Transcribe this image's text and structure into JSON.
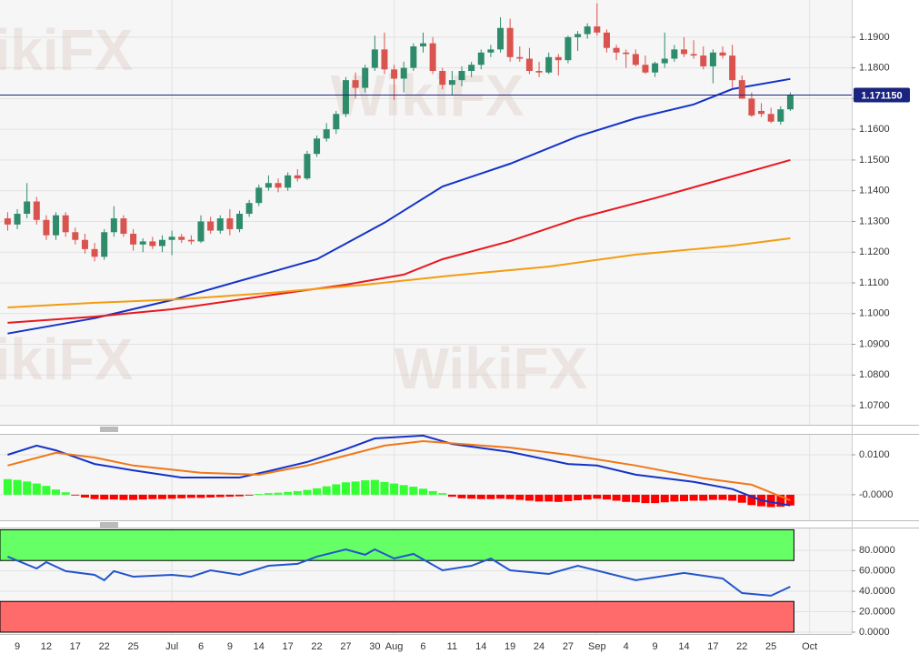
{
  "chart_data": [
    {
      "type": "candlestick",
      "categories": [
        null,
        "9",
        null,
        null,
        "12",
        null,
        null,
        "17",
        null,
        null,
        "22",
        null,
        null,
        "25",
        null,
        null,
        null,
        "Jul",
        null,
        null,
        "6",
        null,
        null,
        "9",
        null,
        null,
        "14",
        null,
        null,
        "17",
        null,
        null,
        "22",
        null,
        null,
        "27",
        null,
        null,
        "30",
        null,
        "Aug",
        null,
        null,
        "6",
        null,
        null,
        "11",
        null,
        null,
        "14",
        null,
        null,
        "19",
        null,
        null,
        "24",
        null,
        null,
        "27",
        null,
        null,
        "Sep",
        null,
        null,
        "4",
        null,
        null,
        "9",
        null,
        null,
        "14",
        null,
        null,
        "17",
        null,
        null,
        "22",
        null,
        null,
        "25",
        null,
        null,
        null,
        "Oct"
      ],
      "open": [
        1.131,
        1.129,
        1.1325,
        1.1365,
        1.1305,
        1.1255,
        1.132,
        1.1265,
        1.124,
        1.121,
        1.1185,
        1.1265,
        1.131,
        1.126,
        1.1225,
        1.1235,
        1.122,
        1.124,
        1.125,
        1.124,
        1.1235,
        1.13,
        1.127,
        1.131,
        1.1275,
        1.1325,
        1.136,
        1.141,
        1.1425,
        1.141,
        1.145,
        1.144,
        1.152,
        1.157,
        1.16,
        1.165,
        1.176,
        1.1735,
        1.18,
        1.186,
        1.1795,
        1.1765,
        1.18,
        1.187,
        1.188,
        1.179,
        1.1745,
        1.176,
        1.179,
        1.181,
        1.185,
        1.186,
        1.193,
        1.1835,
        1.183,
        1.179,
        1.1785,
        1.1835,
        1.1825,
        1.19,
        1.191,
        1.1935,
        1.1915,
        1.1865,
        1.185,
        1.1845,
        1.181,
        1.1785,
        1.1815,
        1.183,
        1.186,
        1.1845,
        1.184,
        1.1805,
        1.185,
        1.184,
        1.176,
        1.17,
        1.166,
        1.165,
        1.1625,
        1.1665,
        null,
        null
      ],
      "high": [
        1.133,
        1.134,
        1.1425,
        1.138,
        1.132,
        1.133,
        1.133,
        1.128,
        1.126,
        1.123,
        1.1275,
        1.135,
        1.132,
        1.1275,
        1.1245,
        1.125,
        1.1255,
        1.127,
        1.126,
        1.1255,
        1.132,
        1.1315,
        1.132,
        1.134,
        1.1335,
        1.137,
        1.142,
        1.145,
        1.144,
        1.146,
        1.147,
        1.153,
        1.158,
        1.162,
        1.166,
        1.177,
        1.1785,
        1.181,
        1.1905,
        1.1915,
        1.181,
        1.182,
        1.188,
        1.1915,
        1.19,
        1.18,
        1.179,
        1.1805,
        1.182,
        1.186,
        1.1875,
        1.1965,
        1.196,
        1.187,
        1.1865,
        1.182,
        1.185,
        1.1845,
        1.1905,
        1.192,
        1.1945,
        1.201,
        1.1925,
        1.1875,
        1.186,
        1.186,
        1.184,
        1.182,
        1.1915,
        1.1875,
        1.19,
        1.189,
        1.187,
        1.186,
        1.187,
        1.1875,
        1.1775,
        1.172,
        1.1685,
        1.167,
        1.1675,
        1.172,
        null,
        null
      ],
      "low": [
        1.127,
        1.1275,
        1.131,
        1.129,
        1.124,
        1.124,
        1.125,
        1.1225,
        1.1195,
        1.117,
        1.1175,
        1.125,
        1.125,
        1.1205,
        1.12,
        1.121,
        1.12,
        1.119,
        1.123,
        1.1225,
        1.123,
        1.126,
        1.126,
        1.1255,
        1.1265,
        1.1315,
        1.135,
        1.14,
        1.1395,
        1.14,
        1.143,
        1.1435,
        1.151,
        1.156,
        1.1585,
        1.164,
        1.17,
        1.172,
        1.179,
        1.178,
        1.1695,
        1.172,
        1.179,
        1.185,
        1.178,
        1.173,
        1.171,
        1.174,
        1.177,
        1.1795,
        1.1835,
        1.185,
        1.182,
        1.182,
        1.178,
        1.177,
        1.178,
        1.1775,
        1.1815,
        1.1855,
        1.1895,
        1.1905,
        1.185,
        1.1825,
        1.18,
        1.1805,
        1.178,
        1.177,
        1.18,
        1.182,
        1.1835,
        1.183,
        1.1795,
        1.175,
        1.183,
        1.1735,
        1.17,
        1.164,
        1.164,
        1.162,
        1.1615,
        1.166,
        null,
        null
      ],
      "close": [
        1.129,
        1.1325,
        1.1365,
        1.1305,
        1.1255,
        1.132,
        1.1265,
        1.124,
        1.121,
        1.1185,
        1.1265,
        1.131,
        1.126,
        1.1225,
        1.1235,
        1.122,
        1.124,
        1.125,
        1.124,
        1.1235,
        1.13,
        1.127,
        1.131,
        1.1275,
        1.1325,
        1.136,
        1.141,
        1.1425,
        1.141,
        1.145,
        1.144,
        1.152,
        1.157,
        1.16,
        1.165,
        1.176,
        1.1735,
        1.18,
        1.186,
        1.1795,
        1.1765,
        1.18,
        1.187,
        1.188,
        1.179,
        1.1745,
        1.176,
        1.179,
        1.181,
        1.185,
        1.186,
        1.193,
        1.1835,
        1.183,
        1.179,
        1.1785,
        1.1835,
        1.1825,
        1.19,
        1.191,
        1.1935,
        1.1915,
        1.1865,
        1.185,
        1.1845,
        1.181,
        1.1785,
        1.1815,
        1.183,
        1.186,
        1.1845,
        1.184,
        1.1805,
        1.185,
        1.184,
        1.176,
        1.17,
        1.1645,
        1.165,
        1.1625,
        1.1665,
        1.1712,
        null,
        null
      ],
      "up_color": "#2e8b6b",
      "down_color": "#d9534f",
      "lines": [
        {
          "color": "#1432c8",
          "x": [
            0,
            9,
            17,
            27,
            32,
            39,
            45,
            52,
            59,
            65,
            71,
            75,
            81
          ],
          "values": [
            1.0935,
            1.0985,
            1.1044,
            1.1133,
            1.1177,
            1.1296,
            1.1414,
            1.1488,
            1.1577,
            1.1636,
            1.1681,
            1.1731,
            1.1764
          ]
        },
        {
          "color": "#e8181f",
          "x": [
            0,
            9,
            17,
            27,
            35,
            41,
            45,
            52,
            59,
            67,
            73,
            81
          ],
          "values": [
            1.097,
            1.099,
            1.1014,
            1.1059,
            1.1094,
            1.1127,
            1.1177,
            1.1236,
            1.131,
            1.1376,
            1.1429,
            1.15
          ]
        },
        {
          "color": "#f39c12",
          "x": [
            0,
            9,
            18,
            27,
            37,
            46,
            56,
            65,
            75,
            81
          ],
          "values": [
            1.102,
            1.1035,
            1.1047,
            1.1067,
            1.1094,
            1.1124,
            1.1153,
            1.1192,
            1.1221,
            1.1245
          ]
        }
      ],
      "price_line": {
        "value": 1.17115,
        "label": "1.171150",
        "color": "#1a237e"
      },
      "ylim": [
        1.0638,
        1.2021
      ],
      "yticks": [
        {
          "value": 1.19,
          "label": "1.1900"
        },
        {
          "value": 1.18,
          "label": "1.1800"
        },
        {
          "value": 1.17,
          "label": "1.1700"
        },
        {
          "value": 1.16,
          "label": "1.1600"
        },
        {
          "value": 1.15,
          "label": "1.1500"
        },
        {
          "value": 1.14,
          "label": "1.1400"
        },
        {
          "value": 1.13,
          "label": "1.1300"
        },
        {
          "value": 1.12,
          "label": "1.1200"
        },
        {
          "value": 1.11,
          "label": "1.1100"
        },
        {
          "value": 1.1,
          "label": "1.1000"
        },
        {
          "value": 1.09,
          "label": "1.0900"
        },
        {
          "value": 1.08,
          "label": "1.0800"
        },
        {
          "value": 1.07,
          "label": "1.0700"
        }
      ],
      "grid": true,
      "watermark": "WikiFX"
    },
    {
      "type": "macd",
      "histogram": {
        "up_color": "#33ff33",
        "down_color": "#ff0000",
        "values": [
          0.0039,
          0.0037,
          0.0033,
          0.0028,
          0.0022,
          0.0013,
          0.0006,
          -0.0002,
          -0.0007,
          -0.0011,
          -0.0012,
          -0.0012,
          -0.0013,
          -0.0013,
          -0.0012,
          -0.0011,
          -0.0011,
          -0.001,
          -0.0009,
          -0.0008,
          -0.0008,
          -0.0007,
          -0.0006,
          -0.0005,
          -0.0004,
          -0.0002,
          0.0002,
          0.0004,
          0.0005,
          0.0007,
          0.0009,
          0.0012,
          0.0016,
          0.0021,
          0.0026,
          0.0031,
          0.0033,
          0.0036,
          0.0037,
          0.0032,
          0.0028,
          0.0024,
          0.002,
          0.0015,
          0.0009,
          0.0004,
          -0.0005,
          -0.0009,
          -0.001,
          -0.0011,
          -0.0011,
          -0.001,
          -0.0011,
          -0.0013,
          -0.0015,
          -0.0017,
          -0.0017,
          -0.0018,
          -0.0016,
          -0.0014,
          -0.0012,
          -0.001,
          -0.0012,
          -0.0015,
          -0.0018,
          -0.0019,
          -0.0021,
          -0.0021,
          -0.0019,
          -0.0017,
          -0.0016,
          -0.0015,
          -0.0015,
          -0.0013,
          -0.0013,
          -0.0015,
          -0.002,
          -0.0026,
          -0.0029,
          -0.0031,
          -0.003,
          -0.0027,
          null,
          null
        ]
      },
      "lines": [
        {
          "color": "#1432c8",
          "x": [
            0,
            3,
            5,
            9,
            13,
            18,
            24,
            27,
            31,
            35,
            38,
            43,
            46,
            52,
            58,
            61,
            65,
            71,
            75,
            78,
            81
          ],
          "values": [
            0.01,
            0.0123,
            0.0111,
            0.0077,
            0.0061,
            0.0043,
            0.0043,
            0.0059,
            0.0082,
            0.0114,
            0.0141,
            0.0148,
            0.0127,
            0.0107,
            0.0077,
            0.0073,
            0.005,
            0.0032,
            0.0014,
            -0.0014,
            -0.0027
          ]
        },
        {
          "color": "#f07818",
          "x": [
            0,
            5,
            9,
            13,
            20,
            26,
            31,
            39,
            43,
            52,
            58,
            65,
            72,
            77,
            81
          ],
          "values": [
            0.0073,
            0.0105,
            0.0093,
            0.0073,
            0.0055,
            0.005,
            0.0073,
            0.0123,
            0.0134,
            0.0118,
            0.01,
            0.0073,
            0.0041,
            0.0025,
            -0.0014
          ]
        }
      ],
      "ylim": [
        -0.0064,
        0.015
      ],
      "yticks": [
        {
          "value": 0.01,
          "label": "0.0100"
        },
        {
          "value": 0,
          "label": "-0.0000"
        }
      ],
      "grid": true
    },
    {
      "type": "rsi",
      "zones": [
        {
          "from": 70,
          "to": 100,
          "color": "#66ff66"
        },
        {
          "from": 0,
          "to": 30,
          "color": "#ff6b6b"
        }
      ],
      "lines": [
        {
          "color": "#2255cc",
          "x": [
            0,
            3,
            4,
            6,
            9,
            10,
            11,
            13,
            17,
            19,
            21,
            24,
            27,
            30,
            32,
            35,
            37,
            38,
            40,
            42,
            45,
            48,
            50,
            52,
            56,
            59,
            65,
            70,
            74,
            76,
            79,
            81
          ],
          "values": [
            73.8,
            62.2,
            68.4,
            59.6,
            56.0,
            50.7,
            59.6,
            54.2,
            56.0,
            54.2,
            60.4,
            56.0,
            64.9,
            66.7,
            73.8,
            80.9,
            75.6,
            80.9,
            72.0,
            76.4,
            60.4,
            64.9,
            72.0,
            60.4,
            56.9,
            64.9,
            50.7,
            57.8,
            52.4,
            38.2,
            35.6,
            44.4
          ]
        }
      ],
      "ylim": [
        -1.8,
        101.3
      ],
      "yticks": [
        {
          "value": 80,
          "label": "80.0000"
        },
        {
          "value": 60,
          "label": "60.0000"
        },
        {
          "value": 40,
          "label": "40.0000"
        },
        {
          "value": 20,
          "label": "20.0000"
        },
        {
          "value": 0,
          "label": "0.0000"
        }
      ],
      "grid": true
    }
  ]
}
